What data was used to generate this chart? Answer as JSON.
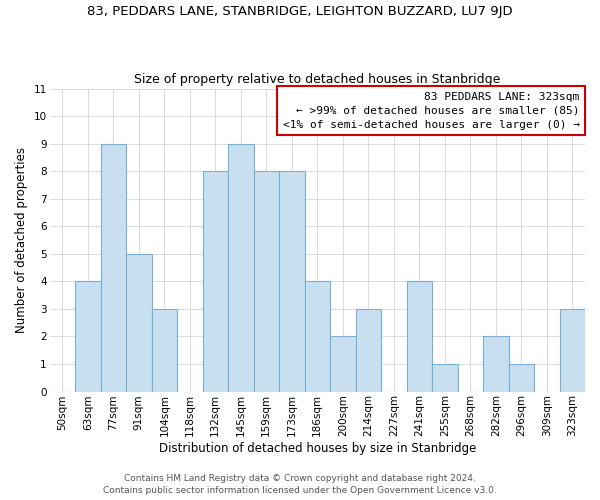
{
  "title": "83, PEDDARS LANE, STANBRIDGE, LEIGHTON BUZZARD, LU7 9JD",
  "subtitle": "Size of property relative to detached houses in Stanbridge",
  "xlabel": "Distribution of detached houses by size in Stanbridge",
  "ylabel": "Number of detached properties",
  "bar_labels": [
    "50sqm",
    "63sqm",
    "77sqm",
    "91sqm",
    "104sqm",
    "118sqm",
    "132sqm",
    "145sqm",
    "159sqm",
    "173sqm",
    "186sqm",
    "200sqm",
    "214sqm",
    "227sqm",
    "241sqm",
    "255sqm",
    "268sqm",
    "282sqm",
    "296sqm",
    "309sqm",
    "323sqm"
  ],
  "bar_values": [
    0,
    4,
    9,
    5,
    3,
    0,
    8,
    9,
    8,
    8,
    4,
    2,
    3,
    0,
    4,
    1,
    0,
    2,
    1,
    0,
    3
  ],
  "bar_color": "#c8dff0",
  "bar_edge_color": "#7aafd4",
  "ylim": [
    0,
    11
  ],
  "yticks": [
    0,
    1,
    2,
    3,
    4,
    5,
    6,
    7,
    8,
    9,
    10,
    11
  ],
  "legend_title": "83 PEDDARS LANE: 323sqm",
  "legend_line1": "← >99% of detached houses are smaller (85)",
  "legend_line2": "<1% of semi-detached houses are larger (0) →",
  "legend_box_color": "#cc0000",
  "footer_line1": "Contains HM Land Registry data © Crown copyright and database right 2024.",
  "footer_line2": "Contains public sector information licensed under the Open Government Licence v3.0.",
  "title_fontsize": 9.5,
  "subtitle_fontsize": 9,
  "axis_label_fontsize": 8.5,
  "tick_fontsize": 7.5,
  "legend_fontsize": 8,
  "footer_fontsize": 6.5
}
